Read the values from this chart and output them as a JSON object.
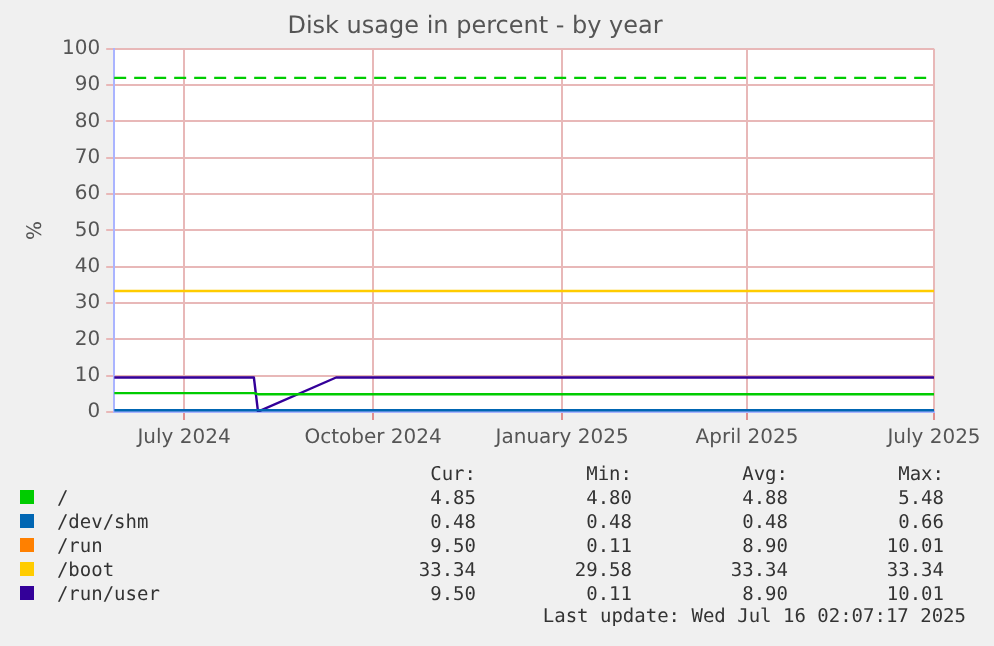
{
  "chart_data": {
    "type": "line",
    "title": "Disk usage in percent - by year",
    "ylabel": "%",
    "x": [
      "2024-06-12",
      "2024-08-19",
      "2024-08-21",
      "2024-09-28",
      "2025-07-16"
    ],
    "series": [
      {
        "name": "/",
        "color": "#00cc00",
        "values": [
          5.2,
          5.2,
          4.9,
          4.9,
          4.9
        ]
      },
      {
        "name": "/dev/shm",
        "color": "#0066b3",
        "values": [
          0.5,
          0.5,
          0.5,
          0.5,
          0.5
        ]
      },
      {
        "name": "/run",
        "color": "#ff8000",
        "values": [
          null,
          null,
          null,
          null,
          null
        ]
      },
      {
        "name": "/boot",
        "color": "#ffcc00",
        "values": [
          33.3,
          33.3,
          33.3,
          33.3,
          33.3
        ]
      },
      {
        "name": "/run/user",
        "color": "#330099",
        "values": [
          9.5,
          9.5,
          0.1,
          9.5,
          9.5
        ]
      }
    ],
    "xlim": [
      "2024-06-12",
      "2025-07-16"
    ],
    "xticks": [
      {
        "value": "2024-07-16",
        "label": "July 2024"
      },
      {
        "value": "2024-10-16",
        "label": "October 2024"
      },
      {
        "value": "2025-01-16",
        "label": "January 2025"
      },
      {
        "value": "2025-04-16",
        "label": "April 2025"
      },
      {
        "value": "2025-07-16",
        "label": "July 2025"
      }
    ],
    "ylim": [
      0,
      100
    ],
    "yticks": [
      0,
      10,
      20,
      30,
      40,
      50,
      60,
      70,
      80,
      90,
      100
    ],
    "ref_lines": [
      {
        "axis": "y",
        "value": 92,
        "color": "#00cc00",
        "line_style": "dashed"
      }
    ],
    "grid": true,
    "legend": "bottom",
    "marker": "none",
    "line_style": "solid",
    "annotations": [
      "Cur:",
      "Min:",
      "Avg:",
      "Max:",
      "4.85",
      "4.80",
      "4.88",
      "5.48",
      "0.48",
      "0.48",
      "0.48",
      "0.66",
      "9.50",
      "0.11",
      "8.90",
      "10.01",
      "33.34",
      "29.58",
      "33.34",
      "33.34",
      "9.50",
      "0.11",
      "8.90",
      "10.01",
      "Last update: Wed Jul 16 02:07:17 2025"
    ]
  }
}
